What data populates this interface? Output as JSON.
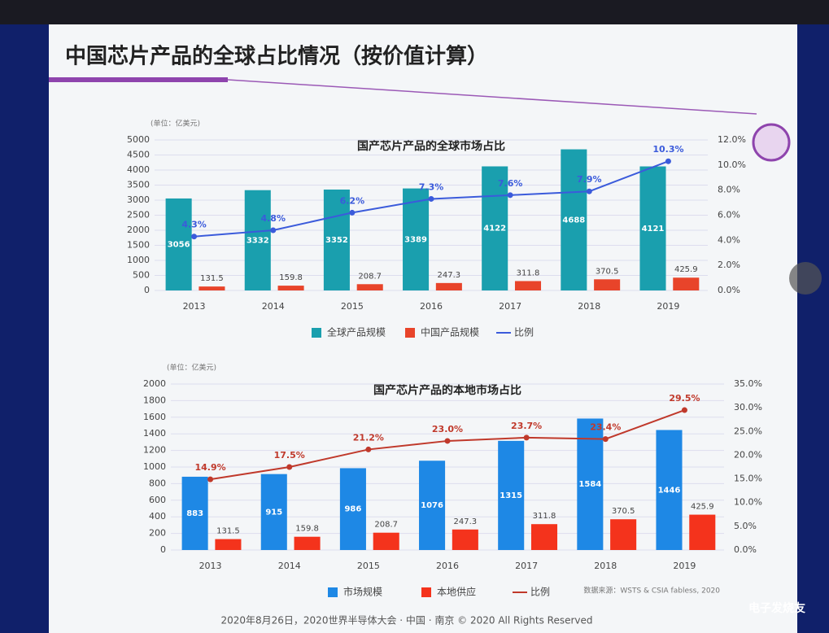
{
  "header": {
    "title": "中国芯片产品的全球占比情况（按价值计算）"
  },
  "chart_data": [
    {
      "type": "bar",
      "title": "国产芯片产品的全球市场占比",
      "unit": "(单位：亿美元)",
      "categories": [
        "2013",
        "2014",
        "2015",
        "2016",
        "2017",
        "2018",
        "2019"
      ],
      "series": [
        {
          "name": "全球产品规模",
          "color": "#1a9fae",
          "values": [
            3056,
            3332,
            3352,
            3389,
            4122,
            4688,
            4121
          ]
        },
        {
          "name": "中国产品规模",
          "color": "#e8442a",
          "values": [
            131.5,
            159.8,
            208.7,
            247.3,
            311.8,
            370.5,
            425.9
          ]
        },
        {
          "name": "比例",
          "color": "#3b5bdb",
          "axis": "y2",
          "values": [
            4.3,
            4.8,
            6.2,
            7.3,
            7.6,
            7.9,
            10.3
          ],
          "value_labels": [
            "4.3%",
            "4.8%",
            "6.2%",
            "7.3%",
            "7.6%",
            "7.9%",
            "10.3%"
          ]
        }
      ],
      "ylim": [
        0,
        5000
      ],
      "yticks": [
        0,
        500,
        1000,
        1500,
        2000,
        2500,
        3000,
        3500,
        4000,
        4500,
        5000
      ],
      "y2lim": [
        0,
        12
      ],
      "y2ticks": [
        {
          "value": 0,
          "label": "0.0%"
        },
        {
          "value": 2,
          "label": "2.0%"
        },
        {
          "value": 4,
          "label": "4.0%"
        },
        {
          "value": 6,
          "label": "6.0%"
        },
        {
          "value": 8,
          "label": "8.0%"
        },
        {
          "value": 10,
          "label": "10.0%"
        },
        {
          "value": 12,
          "label": "12.0%"
        }
      ],
      "grid": true
    },
    {
      "type": "bar",
      "title": "国产芯片产品的本地市场占比",
      "unit": "(单位：亿美元)",
      "categories": [
        "2013",
        "2014",
        "2015",
        "2016",
        "2017",
        "2018",
        "2019"
      ],
      "series": [
        {
          "name": "市场规模",
          "color": "#1e88e5",
          "values": [
            883,
            915,
            986,
            1076,
            1315,
            1584,
            1446
          ]
        },
        {
          "name": "本地供应",
          "color": "#f4331c",
          "values": [
            131.5,
            159.8,
            208.7,
            247.3,
            311.8,
            370.5,
            425.9
          ]
        },
        {
          "name": "比例",
          "color": "#c0392b",
          "axis": "y2",
          "values": [
            14.9,
            17.5,
            21.2,
            23.0,
            23.7,
            23.4,
            29.5
          ],
          "value_labels": [
            "14.9%",
            "17.5%",
            "21.2%",
            "23.0%",
            "23.7%",
            "23.4%",
            "29.5%"
          ]
        }
      ],
      "ylim": [
        0,
        2000
      ],
      "yticks": [
        0,
        200,
        400,
        600,
        800,
        1000,
        1200,
        1400,
        1600,
        1800,
        2000
      ],
      "y2lim": [
        0,
        35
      ],
      "y2ticks": [
        {
          "value": 0,
          "label": "0.0%"
        },
        {
          "value": 5,
          "label": "5.0%"
        },
        {
          "value": 10,
          "label": "10.0%"
        },
        {
          "value": 15,
          "label": "15.0%"
        },
        {
          "value": 20,
          "label": "20.0%"
        },
        {
          "value": 25,
          "label": "25.0%"
        },
        {
          "value": 30,
          "label": "30.0%"
        },
        {
          "value": 35,
          "label": "35.0%"
        }
      ],
      "grid": true,
      "source": "数据来源：WSTS & CSIA fabless, 2020"
    }
  ],
  "footer": "2020年8月26日，2020世界半导体大会 · 中国 · 南京 © 2020 All Rights Reserved",
  "watermark": "电子发烧友"
}
